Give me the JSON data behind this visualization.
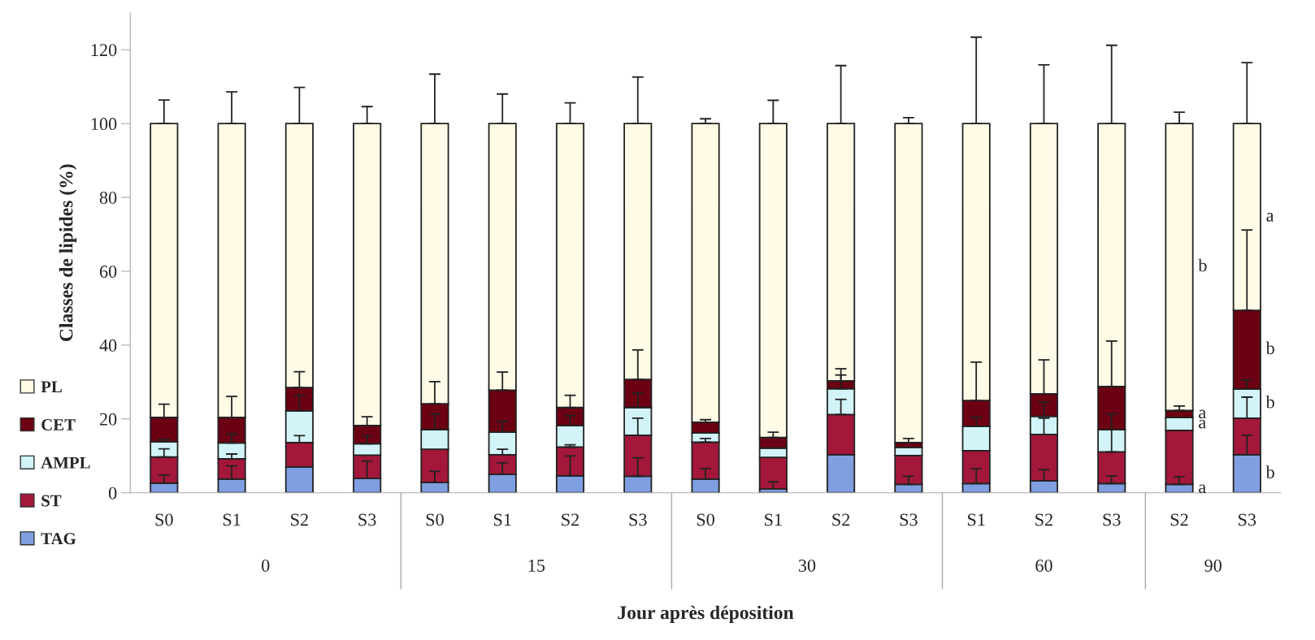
{
  "chart_data": {
    "type": "bar",
    "stacked": true,
    "xlabel": "Jour après déposition",
    "ylabel": "Classes de lipides (%)",
    "categories": [
      "S0",
      "S1",
      "S2",
      "S3",
      "S0",
      "S1",
      "S2",
      "S3",
      "S0",
      "S1",
      "S2",
      "S3",
      "S1",
      "S2",
      "S3",
      "S2",
      "S3"
    ],
    "series": [
      {
        "name": "TAG",
        "color": "#7f9fe0",
        "values": [
          2.6,
          3.7,
          7.0,
          3.9,
          2.8,
          5.0,
          4.6,
          4.5,
          3.7,
          1.0,
          10.3,
          2.3,
          2.5,
          3.2,
          2.5,
          2.3,
          10.3
        ],
        "errors": [
          [
            2.6,
            4.8
          ],
          [
            3.7,
            7.3
          ],
          null,
          [
            3.9,
            8.6
          ],
          [
            2.8,
            5.8
          ],
          [
            5.0,
            8.1
          ],
          [
            4.6,
            10.0
          ],
          [
            4.5,
            9.5
          ],
          [
            3.7,
            6.5
          ],
          [
            1.0,
            3.0
          ],
          null,
          [
            2.3,
            4.5
          ],
          [
            2.5,
            6.5
          ],
          [
            3.2,
            6.3
          ],
          [
            2.5,
            4.6
          ],
          [
            2.3,
            4.3
          ],
          [
            10.3,
            15.6
          ]
        ],
        "value_labels": [
          null,
          null,
          null,
          null,
          null,
          null,
          null,
          null,
          null,
          null,
          null,
          null,
          null,
          null,
          null,
          "a",
          "b"
        ]
      },
      {
        "name": "ST",
        "color": "#a3173a",
        "values": [
          7.1,
          5.5,
          6.6,
          6.3,
          9.0,
          5.3,
          7.8,
          11.1,
          10.0,
          8.6,
          10.9,
          7.8,
          8.9,
          12.6,
          8.6,
          14.6,
          9.9
        ],
        "errors": [
          [
            9.7,
            11.9
          ],
          [
            9.2,
            10.5
          ],
          [
            13.6,
            15.5
          ],
          null,
          null,
          [
            10.3,
            11.8
          ],
          [
            12.4,
            13.0
          ],
          [
            15.6,
            20.2
          ],
          [
            13.7,
            14.7
          ],
          null,
          [
            21.2,
            25.3
          ],
          null,
          null,
          [
            15.8,
            20.2
          ],
          [
            11.1,
            21.3
          ],
          null,
          [
            20.2,
            25.9
          ]
        ]
      },
      {
        "name": "AMPL",
        "color": "#d2f4f8",
        "values": [
          4.1,
          4.3,
          8.6,
          3.1,
          5.3,
          6.1,
          5.8,
          7.5,
          2.5,
          2.5,
          7.0,
          2.2,
          6.6,
          4.9,
          6.0,
          3.5,
          7.9
        ],
        "errors": [
          [
            13.8,
            14.4
          ],
          [
            13.5,
            16.0
          ],
          [
            22.2,
            26.4
          ],
          [
            13.3,
            15.5
          ],
          [
            17.1,
            21.3
          ],
          [
            16.4,
            19.3
          ],
          [
            18.2,
            20.9
          ],
          [
            23.1,
            27.0
          ],
          null,
          null,
          [
            28.2,
            31.9
          ],
          null,
          [
            18.0,
            20.4
          ],
          [
            20.7,
            24.5
          ],
          null,
          null,
          [
            28.1,
            30.5
          ]
        ],
        "value_labels": [
          null,
          null,
          null,
          null,
          null,
          null,
          null,
          null,
          null,
          null,
          null,
          null,
          null,
          null,
          null,
          "a",
          "b"
        ]
      },
      {
        "name": "CET",
        "color": "#6b0012",
        "values": [
          6.6,
          6.9,
          6.3,
          4.9,
          7.0,
          11.4,
          4.9,
          7.6,
          2.9,
          2.9,
          2.1,
          1.3,
          7.0,
          6.1,
          11.7,
          1.9,
          21.3
        ],
        "errors": [
          [
            20.4,
            24.0
          ],
          [
            20.4,
            26.1
          ],
          [
            28.5,
            32.8
          ],
          [
            18.2,
            20.6
          ],
          [
            24.1,
            30.1
          ],
          [
            27.8,
            32.7
          ],
          [
            23.1,
            26.4
          ],
          [
            30.7,
            38.7
          ],
          [
            19.1,
            19.8
          ],
          [
            15.0,
            16.4
          ],
          [
            30.3,
            33.6
          ],
          [
            13.6,
            14.7
          ],
          [
            25.0,
            35.4
          ],
          [
            26.8,
            36.0
          ],
          [
            28.8,
            41.1
          ],
          [
            22.3,
            23.5
          ],
          [
            49.4,
            71.2
          ]
        ],
        "value_labels": [
          null,
          null,
          null,
          null,
          null,
          null,
          null,
          null,
          null,
          null,
          null,
          null,
          null,
          null,
          null,
          "a",
          "b"
        ]
      },
      {
        "name": "PL",
        "color": "#fffbe6",
        "values": [
          79.6,
          79.6,
          71.5,
          81.8,
          75.9,
          72.2,
          76.9,
          69.3,
          80.9,
          85.0,
          69.7,
          86.4,
          75.0,
          73.2,
          71.2,
          77.7,
          50.6
        ],
        "errors": [
          [
            100,
            106.4
          ],
          [
            100,
            108.6
          ],
          [
            100,
            109.8
          ],
          [
            100,
            104.6
          ],
          [
            100,
            113.4
          ],
          [
            100,
            108.0
          ],
          [
            100,
            105.6
          ],
          [
            100,
            112.6
          ],
          [
            100,
            101.3
          ],
          [
            100,
            106.3
          ],
          [
            100,
            115.7
          ],
          [
            100,
            101.6
          ],
          [
            100,
            123.4
          ],
          [
            100,
            115.9
          ],
          [
            100,
            121.2
          ],
          [
            100,
            103.1
          ],
          [
            100,
            116.5
          ]
        ],
        "value_labels": [
          null,
          null,
          null,
          null,
          null,
          null,
          null,
          null,
          null,
          null,
          null,
          null,
          null,
          null,
          null,
          "b",
          "a"
        ]
      }
    ],
    "ylim": [
      0,
      130
    ],
    "yticks": [
      0,
      20,
      40,
      60,
      80,
      100,
      120
    ],
    "annotations": [
      "0",
      "15",
      "30",
      "60",
      "90"
    ],
    "legend": "left",
    "grid": false
  }
}
